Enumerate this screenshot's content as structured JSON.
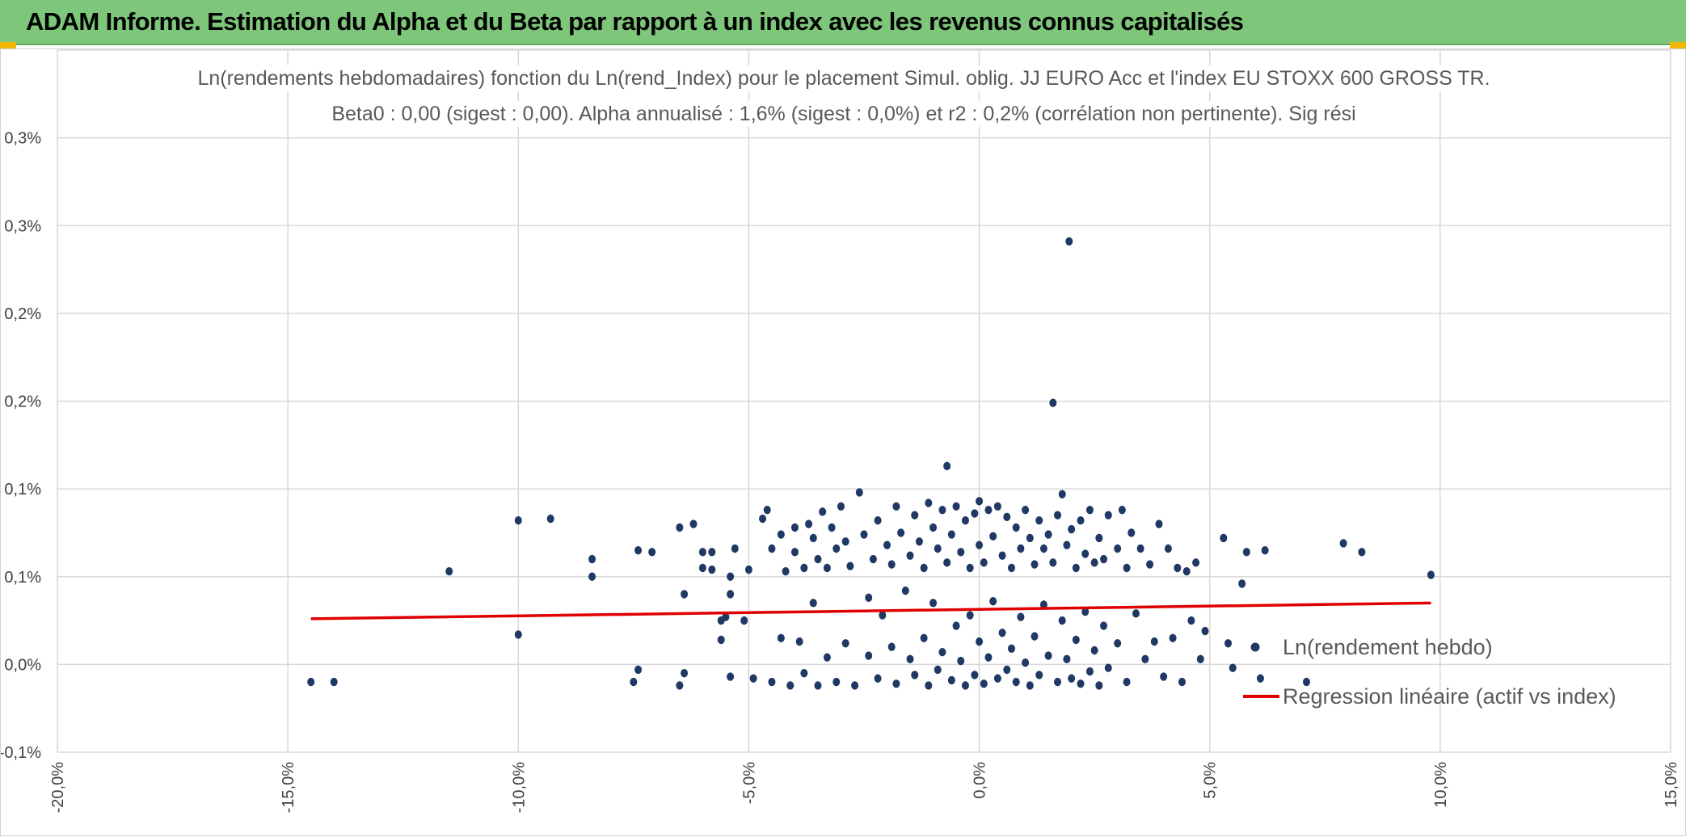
{
  "header": {
    "title": "ADAM Informe. Estimation du Alpha et du Beta par rapport à un index avec les revenus connus capitalisés"
  },
  "colors": {
    "header_bg": "#7dc67a",
    "points": "#203864",
    "regression": "#e00000",
    "gridlines": "#d9d9d9"
  },
  "chart_data": {
    "type": "scatter",
    "title_lines": [
      "Ln(rendements hebdomadaires) fonction du Ln(rend_Index) pour le placement Simul. oblig. JJ EURO Acc et l'index EU STOXX 600 GROSS TR.",
      "Beta0 : 0,00 (sigest : 0,00). Alpha annualisé : 1,6% (sigest : 0,0%) et r2 : 0,2% (corrélation non pertinente). Sig rési"
    ],
    "xlim": [
      -0.2,
      0.15
    ],
    "ylim": [
      -0.0005,
      0.0035
    ],
    "x_ticks": [
      -0.2,
      -0.15,
      -0.1,
      -0.05,
      0.0,
      0.05,
      0.1,
      0.15
    ],
    "x_tick_labels": [
      "-20,0%",
      "-15,0%",
      "-10,0%",
      "-5,0%",
      "0,0%",
      "5,0%",
      "10,0%",
      "15,0%"
    ],
    "y_ticks": [
      -0.0005,
      0.0,
      0.0005,
      0.001,
      0.0015,
      0.002,
      0.0025,
      0.003,
      0.0035
    ],
    "y_tick_labels": [
      "-0,1%",
      "0,0%",
      "0,1%",
      "0,1%",
      "0,2%",
      "0,2%",
      "0,3%",
      "0,3%",
      ""
    ],
    "grid": true,
    "legend_position": "bottom-right",
    "series": [
      {
        "name": "Ln(rendement hebdo)",
        "type": "scatter",
        "points": [
          [
            -0.145,
            -0.0001
          ],
          [
            -0.14,
            -0.0001
          ],
          [
            -0.115,
            0.00053
          ],
          [
            -0.1,
            0.00082
          ],
          [
            -0.1,
            0.00017
          ],
          [
            -0.093,
            0.00083
          ],
          [
            -0.084,
            0.0006
          ],
          [
            -0.084,
            0.0005
          ],
          [
            -0.075,
            -0.0001
          ],
          [
            -0.074,
            0.00065
          ],
          [
            -0.074,
            -3e-05
          ],
          [
            -0.071,
            0.00064
          ],
          [
            -0.065,
            0.00078
          ],
          [
            -0.065,
            -0.00012
          ],
          [
            -0.064,
            0.0004
          ],
          [
            -0.064,
            -5e-05
          ],
          [
            -0.062,
            0.0008
          ],
          [
            -0.06,
            0.00064
          ],
          [
            -0.06,
            0.00055
          ],
          [
            -0.058,
            0.00054
          ],
          [
            -0.058,
            0.00064
          ],
          [
            -0.056,
            0.00025
          ],
          [
            -0.056,
            0.00014
          ],
          [
            -0.055,
            0.00027
          ],
          [
            -0.054,
            0.0004
          ],
          [
            -0.054,
            0.0005
          ],
          [
            -0.054,
            -7e-05
          ],
          [
            -0.053,
            0.00066
          ],
          [
            -0.051,
            0.00025
          ],
          [
            -0.05,
            0.00054
          ],
          [
            -0.049,
            -8e-05
          ],
          [
            -0.047,
            0.00083
          ],
          [
            -0.046,
            0.00088
          ],
          [
            -0.045,
            0.00066
          ],
          [
            -0.045,
            -0.0001
          ],
          [
            -0.043,
            0.00074
          ],
          [
            -0.043,
            0.00015
          ],
          [
            -0.042,
            0.00053
          ],
          [
            -0.041,
            -0.00012
          ],
          [
            -0.04,
            0.00078
          ],
          [
            -0.04,
            0.00064
          ],
          [
            -0.039,
            0.00013
          ],
          [
            -0.038,
            0.00055
          ],
          [
            -0.038,
            -5e-05
          ],
          [
            -0.037,
            0.0008
          ],
          [
            -0.036,
            0.00072
          ],
          [
            -0.036,
            0.00035
          ],
          [
            -0.035,
            0.0006
          ],
          [
            -0.035,
            -0.00012
          ],
          [
            -0.034,
            0.00087
          ],
          [
            -0.033,
            0.00055
          ],
          [
            -0.033,
            4e-05
          ],
          [
            -0.032,
            0.00078
          ],
          [
            -0.031,
            0.00066
          ],
          [
            -0.031,
            -0.0001
          ],
          [
            -0.03,
            0.0009
          ],
          [
            -0.029,
            0.0007
          ],
          [
            -0.029,
            0.00012
          ],
          [
            -0.028,
            0.00056
          ],
          [
            -0.027,
            -0.00012
          ],
          [
            -0.026,
            0.00098
          ],
          [
            -0.025,
            0.00074
          ],
          [
            -0.024,
            0.00038
          ],
          [
            -0.024,
            5e-05
          ],
          [
            -0.023,
            0.0006
          ],
          [
            -0.022,
            0.00082
          ],
          [
            -0.022,
            -8e-05
          ],
          [
            -0.021,
            0.00028
          ],
          [
            -0.02,
            0.00068
          ],
          [
            -0.019,
            0.00057
          ],
          [
            -0.019,
            0.0001
          ],
          [
            -0.018,
            0.0009
          ],
          [
            -0.018,
            -0.00011
          ],
          [
            -0.017,
            0.00075
          ],
          [
            -0.016,
            0.00042
          ],
          [
            -0.015,
            0.00062
          ],
          [
            -0.015,
            3e-05
          ],
          [
            -0.014,
            0.00085
          ],
          [
            -0.014,
            -6e-05
          ],
          [
            -0.013,
            0.0007
          ],
          [
            -0.012,
            0.00055
          ],
          [
            -0.012,
            0.00015
          ],
          [
            -0.011,
            0.00092
          ],
          [
            -0.011,
            -0.00012
          ],
          [
            -0.01,
            0.00078
          ],
          [
            -0.01,
            0.00035
          ],
          [
            -0.009,
            0.00066
          ],
          [
            -0.009,
            -3e-05
          ],
          [
            -0.008,
            0.00088
          ],
          [
            -0.008,
            7e-05
          ],
          [
            -0.007,
            0.00113
          ],
          [
            -0.007,
            0.00058
          ],
          [
            -0.006,
            0.00074
          ],
          [
            -0.006,
            -9e-05
          ],
          [
            -0.005,
            0.0009
          ],
          [
            -0.005,
            0.00022
          ],
          [
            -0.004,
            0.00064
          ],
          [
            -0.004,
            2e-05
          ],
          [
            -0.003,
            0.00082
          ],
          [
            -0.003,
            -0.00012
          ],
          [
            -0.002,
            0.00055
          ],
          [
            -0.002,
            0.00028
          ],
          [
            -0.001,
            0.00086
          ],
          [
            -0.001,
            -6e-05
          ],
          [
            0.0,
            0.00093
          ],
          [
            0.0,
            0.00068
          ],
          [
            0.0,
            0.00013
          ],
          [
            0.001,
            0.00058
          ],
          [
            0.001,
            -0.00011
          ],
          [
            0.002,
            0.00088
          ],
          [
            0.002,
            4e-05
          ],
          [
            0.003,
            0.00073
          ],
          [
            0.003,
            0.00036
          ],
          [
            0.004,
            0.0009
          ],
          [
            0.004,
            -8e-05
          ],
          [
            0.005,
            0.00062
          ],
          [
            0.005,
            0.00018
          ],
          [
            0.006,
            0.00084
          ],
          [
            0.006,
            -3e-05
          ],
          [
            0.007,
            0.00055
          ],
          [
            0.007,
            9e-05
          ],
          [
            0.008,
            0.00078
          ],
          [
            0.008,
            -0.0001
          ],
          [
            0.009,
            0.00066
          ],
          [
            0.009,
            0.00027
          ],
          [
            0.01,
            0.00088
          ],
          [
            0.01,
            1e-05
          ],
          [
            0.011,
            0.00072
          ],
          [
            0.011,
            -0.00012
          ],
          [
            0.012,
            0.00057
          ],
          [
            0.012,
            0.00016
          ],
          [
            0.013,
            0.00082
          ],
          [
            0.013,
            -6e-05
          ],
          [
            0.014,
            0.00066
          ],
          [
            0.014,
            0.00034
          ],
          [
            0.015,
            0.00074
          ],
          [
            0.015,
            5e-05
          ],
          [
            0.016,
            0.00149
          ],
          [
            0.016,
            0.00058
          ],
          [
            0.017,
            0.00085
          ],
          [
            0.017,
            -0.0001
          ],
          [
            0.018,
            0.00097
          ],
          [
            0.018,
            0.00025
          ],
          [
            0.019,
            0.00068
          ],
          [
            0.019,
            3e-05
          ],
          [
            0.0195,
            0.00241
          ],
          [
            0.02,
            0.00077
          ],
          [
            0.02,
            -8e-05
          ],
          [
            0.021,
            0.00055
          ],
          [
            0.021,
            0.00014
          ],
          [
            0.022,
            0.00082
          ],
          [
            0.022,
            -0.00011
          ],
          [
            0.023,
            0.00063
          ],
          [
            0.023,
            0.0003
          ],
          [
            0.024,
            0.00088
          ],
          [
            0.024,
            -4e-05
          ],
          [
            0.025,
            0.00058
          ],
          [
            0.025,
            8e-05
          ],
          [
            0.026,
            0.00072
          ],
          [
            0.026,
            -0.00012
          ],
          [
            0.027,
            0.0006
          ],
          [
            0.027,
            0.00022
          ],
          [
            0.028,
            0.00085
          ],
          [
            0.028,
            -2e-05
          ],
          [
            0.03,
            0.00066
          ],
          [
            0.03,
            0.00012
          ],
          [
            0.031,
            0.00088
          ],
          [
            0.032,
            0.00055
          ],
          [
            0.032,
            -0.0001
          ],
          [
            0.033,
            0.00075
          ],
          [
            0.034,
            0.00029
          ],
          [
            0.035,
            0.00066
          ],
          [
            0.036,
            3e-05
          ],
          [
            0.037,
            0.00057
          ],
          [
            0.038,
            0.00013
          ],
          [
            0.039,
            0.0008
          ],
          [
            0.04,
            -7e-05
          ],
          [
            0.041,
            0.00066
          ],
          [
            0.042,
            0.00015
          ],
          [
            0.043,
            0.00055
          ],
          [
            0.044,
            -0.0001
          ],
          [
            0.045,
            0.00053
          ],
          [
            0.046,
            0.00025
          ],
          [
            0.047,
            0.00058
          ],
          [
            0.048,
            3e-05
          ],
          [
            0.049,
            0.00019
          ],
          [
            0.053,
            0.00072
          ],
          [
            0.054,
            0.00012
          ],
          [
            0.055,
            -2e-05
          ],
          [
            0.057,
            0.00046
          ],
          [
            0.058,
            0.00064
          ],
          [
            0.061,
            -8e-05
          ],
          [
            0.062,
            0.00065
          ],
          [
            0.071,
            -0.0001
          ],
          [
            0.079,
            0.00069
          ],
          [
            0.083,
            0.00064
          ],
          [
            0.098,
            0.00051
          ]
        ]
      },
      {
        "name": "Regression linéaire (actif vs index)",
        "type": "line",
        "x": [
          -0.145,
          0.098
        ],
        "y": [
          0.00026,
          0.00035
        ]
      }
    ]
  }
}
